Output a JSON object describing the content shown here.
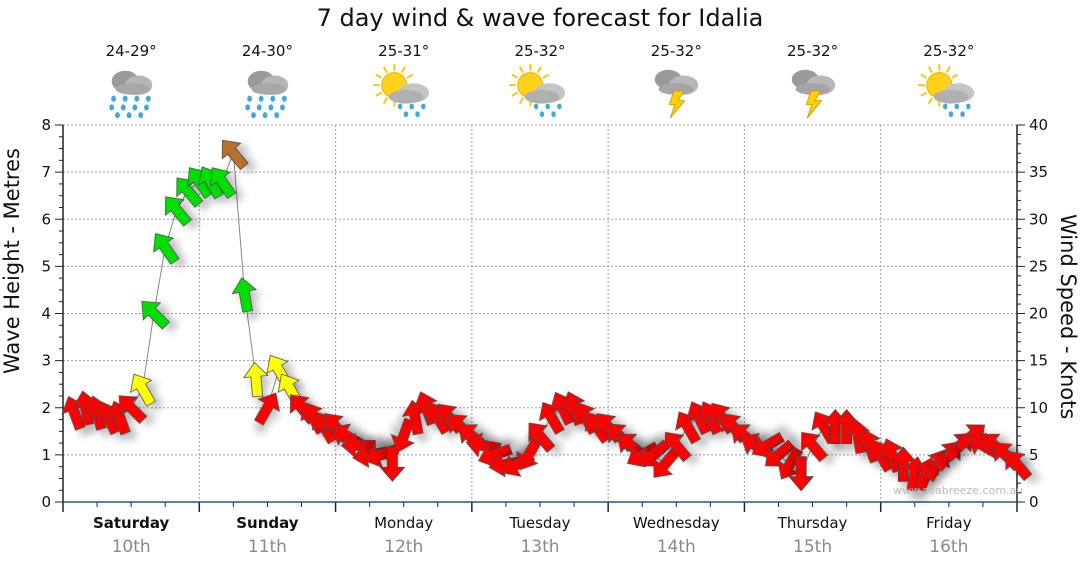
{
  "title": "7 day wind & wave forecast for Idalia",
  "watermark": "www.seabreeze.com.au",
  "days": [
    {
      "day": "Saturday",
      "date": "10th",
      "temp": "24-29°",
      "icon": "rain",
      "bold": true
    },
    {
      "day": "Sunday",
      "date": "11th",
      "temp": "24-30°",
      "icon": "rain",
      "bold": true
    },
    {
      "day": "Monday",
      "date": "12th",
      "temp": "25-31°",
      "icon": "sun-shower",
      "bold": false
    },
    {
      "day": "Tuesday",
      "date": "13th",
      "temp": "25-32°",
      "icon": "sun-shower",
      "bold": false
    },
    {
      "day": "Wednesday",
      "date": "14th",
      "temp": "25-32°",
      "icon": "storm",
      "bold": false
    },
    {
      "day": "Thursday",
      "date": "15th",
      "temp": "25-32°",
      "icon": "storm",
      "bold": false
    },
    {
      "day": "Friday",
      "date": "16th",
      "temp": "25-32°",
      "icon": "sun-shower",
      "bold": false
    }
  ],
  "chart_data": {
    "type": "line",
    "title": "7 day wind & wave forecast for Idalia",
    "ylabel": "Wave Height - Metres",
    "y2label": "Wind Speed - Knots",
    "ylim": [
      0,
      8
    ],
    "y2lim": [
      0,
      40
    ],
    "yticks": [
      "0",
      "1",
      "2",
      "3",
      "4",
      "5",
      "6",
      "7",
      "8"
    ],
    "y2ticks": [
      "0",
      "5",
      "10",
      "15",
      "20",
      "25",
      "30",
      "35",
      "40"
    ],
    "grid": true,
    "x_hours_range": [
      0,
      168
    ],
    "wind": {
      "interval_hours": 2,
      "speed_knots": [
        9.5,
        10,
        9.5,
        9,
        9,
        10,
        12,
        20,
        27,
        31,
        33,
        34,
        34,
        34,
        37,
        22,
        13,
        10,
        14,
        12,
        10,
        9,
        8,
        8,
        7,
        6,
        5,
        5,
        4,
        7,
        9,
        10,
        9,
        9,
        8,
        7,
        6,
        5,
        4,
        4,
        5,
        7,
        9,
        10,
        10,
        9,
        8,
        8,
        7,
        6,
        5,
        5,
        4,
        6,
        8,
        9,
        9,
        9,
        8,
        7,
        6,
        6,
        5,
        4,
        3,
        6,
        8,
        8,
        8,
        7,
        6,
        5,
        5,
        4,
        3,
        3,
        4,
        5,
        6,
        7,
        6,
        6,
        5,
        4
      ],
      "direction_deg": [
        -20,
        -10,
        -15,
        -25,
        -20,
        -45,
        -30,
        -45,
        -35,
        -40,
        -40,
        -35,
        -30,
        -35,
        -40,
        -10,
        -5,
        30,
        -30,
        -30,
        -40,
        -30,
        -30,
        -40,
        -60,
        -90,
        -100,
        -110,
        180,
        200,
        -10,
        -20,
        -30,
        -40,
        -45,
        -50,
        -80,
        -110,
        -100,
        -120,
        -150,
        -40,
        -30,
        -25,
        -20,
        -30,
        -35,
        -40,
        -45,
        -50,
        -120,
        -130,
        -140,
        -40,
        -30,
        -25,
        -25,
        -35,
        -40,
        -50,
        -60,
        -120,
        -130,
        -150,
        180,
        -40,
        -30,
        0,
        0,
        -10,
        -20,
        -30,
        -20,
        0,
        10,
        20,
        30,
        40,
        45,
        50,
        -60,
        -50,
        -45,
        -40
      ]
    },
    "color_scale": [
      {
        "max": 10,
        "color": "#ff0000"
      },
      {
        "max": 15,
        "color": "#ffff00"
      },
      {
        "max": 35,
        "color": "#00e000"
      },
      {
        "max": 99,
        "color": "#b8702a"
      }
    ]
  }
}
